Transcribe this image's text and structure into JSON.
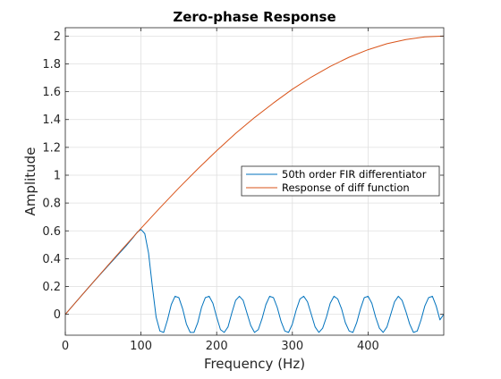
{
  "chart_data": {
    "type": "line",
    "title": "Zero-phase Response",
    "xlabel": "Frequency (Hz)",
    "ylabel": "Amplitude",
    "xlim": [
      0,
      500
    ],
    "ylim": [
      -0.15,
      2.06
    ],
    "xticks": [
      0,
      100,
      200,
      300,
      400
    ],
    "yticks": [
      0,
      0.2,
      0.4,
      0.6,
      0.8,
      1,
      1.2,
      1.4,
      1.6,
      1.8,
      2
    ],
    "xtick_labels": [
      "0",
      "100",
      "200",
      "300",
      "400"
    ],
    "ytick_labels": [
      "0",
      "0.2",
      "0.4",
      "0.6",
      "0.8",
      "1",
      "1.2",
      "1.4",
      "1.6",
      "1.8",
      "2"
    ],
    "grid": true,
    "legend_placement": "center-right",
    "series": [
      {
        "name": "50th order FIR differentiator",
        "color": "#0072BD",
        "x": [
          0,
          10,
          20,
          30,
          40,
          50,
          60,
          70,
          80,
          90,
          95,
          100,
          105,
          110,
          115,
          120,
          125,
          130,
          135,
          140,
          145,
          150,
          155,
          160,
          165,
          170,
          175,
          180,
          185,
          190,
          195,
          200,
          205,
          210,
          215,
          220,
          225,
          230,
          235,
          240,
          245,
          250,
          255,
          260,
          265,
          270,
          275,
          280,
          285,
          290,
          295,
          300,
          305,
          310,
          315,
          320,
          325,
          330,
          335,
          340,
          345,
          350,
          355,
          360,
          365,
          370,
          375,
          380,
          385,
          390,
          395,
          400,
          405,
          410,
          415,
          420,
          425,
          430,
          435,
          440,
          445,
          450,
          455,
          460,
          465,
          470,
          475,
          480,
          485,
          490,
          495,
          500
        ],
        "y": [
          0,
          0.063,
          0.126,
          0.188,
          0.25,
          0.31,
          0.37,
          0.43,
          0.49,
          0.555,
          0.59,
          0.61,
          0.58,
          0.44,
          0.2,
          -0.02,
          -0.12,
          -0.13,
          -0.04,
          0.07,
          0.13,
          0.12,
          0.04,
          -0.07,
          -0.13,
          -0.13,
          -0.06,
          0.05,
          0.12,
          0.13,
          0.08,
          -0.02,
          -0.11,
          -0.13,
          -0.09,
          0.01,
          0.1,
          0.13,
          0.1,
          0.01,
          -0.08,
          -0.13,
          -0.11,
          -0.03,
          0.07,
          0.13,
          0.12,
          0.05,
          -0.05,
          -0.12,
          -0.13,
          -0.07,
          0.03,
          0.11,
          0.13,
          0.09,
          0,
          -0.09,
          -0.13,
          -0.1,
          -0.02,
          0.08,
          0.13,
          0.11,
          0.04,
          -0.06,
          -0.12,
          -0.13,
          -0.06,
          0.04,
          0.12,
          0.13,
          0.08,
          -0.02,
          -0.1,
          -0.13,
          -0.09,
          0,
          0.09,
          0.13,
          0.1,
          0.02,
          -0.07,
          -0.13,
          -0.12,
          -0.04,
          0.06,
          0.12,
          0.13,
          0.06,
          -0.04,
          0
        ]
      },
      {
        "name": "Response of diff function",
        "color": "#D95319",
        "x": [
          0,
          25,
          50,
          75,
          100,
          125,
          150,
          175,
          200,
          225,
          250,
          275,
          300,
          325,
          350,
          375,
          400,
          425,
          450,
          475,
          500
        ],
        "y": [
          0,
          0.157,
          0.313,
          0.467,
          0.618,
          0.765,
          0.908,
          1.045,
          1.176,
          1.3,
          1.414,
          1.519,
          1.618,
          1.705,
          1.782,
          1.848,
          1.902,
          1.945,
          1.975,
          1.994,
          2.0
        ]
      }
    ]
  }
}
